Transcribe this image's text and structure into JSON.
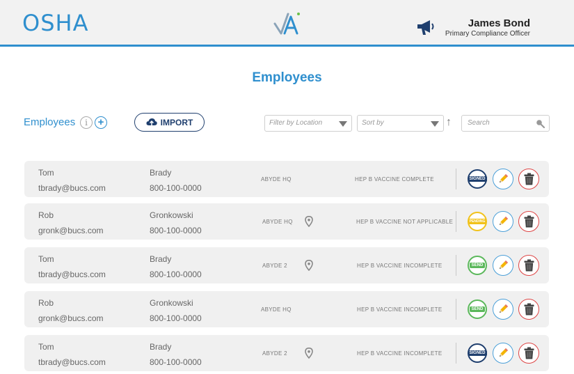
{
  "header": {
    "brand": "OSHA",
    "logo_icon": "abyde-logo-icon",
    "notification_icon": "megaphone-icon",
    "user_name": "James Bond",
    "user_role": "Primary Compliance Officer"
  },
  "page_title": "Employees",
  "toolbar": {
    "label": "Employees",
    "info_glyph": "i",
    "add_glyph": "+",
    "import_label": "IMPORT",
    "location_placeholder": "Filter by Location",
    "sort_placeholder": "Sort by",
    "sort_arrow": "↑",
    "search_placeholder": "Search"
  },
  "colors": {
    "accent": "#2f8fce",
    "navy": "#1f3f6e",
    "pending": "#f1c21b",
    "send": "#5bb85b",
    "delete": "#dd4444"
  },
  "employees": [
    {
      "first": "Tom",
      "last": "Brady",
      "email": "tbrady@bucs.com",
      "phone": "800-100-0000",
      "location": "ABYDE HQ",
      "pin": false,
      "status": "HEP B VACCINE COMPLETE",
      "badge": "SIGNED"
    },
    {
      "first": "Rob",
      "last": "Gronkowski",
      "email": "gronk@bucs.com",
      "phone": "800-100-0000",
      "location": "ABYDE HQ",
      "pin": true,
      "status": "HEP B VACCINE NOT APPLICABLE",
      "badge": "PENDING"
    },
    {
      "first": "Tom",
      "last": "Brady",
      "email": "tbrady@bucs.com",
      "phone": "800-100-0000",
      "location": "ABYDE 2",
      "pin": true,
      "status": "HEP B VACCINE INCOMPLETE",
      "badge": "SEND"
    },
    {
      "first": "Rob",
      "last": "Gronkowski",
      "email": "gronk@bucs.com",
      "phone": "800-100-0000",
      "location": "ABYDE HQ",
      "pin": false,
      "status": "HEP B VACCINE INCOMPLETE",
      "badge": "SEND"
    },
    {
      "first": "Tom",
      "last": "Brady",
      "email": "tbrady@bucs.com",
      "phone": "800-100-0000",
      "location": "ABYDE 2",
      "pin": true,
      "status": "HEP B VACCINE INCOMPLETE",
      "badge": "SIGNED"
    }
  ]
}
